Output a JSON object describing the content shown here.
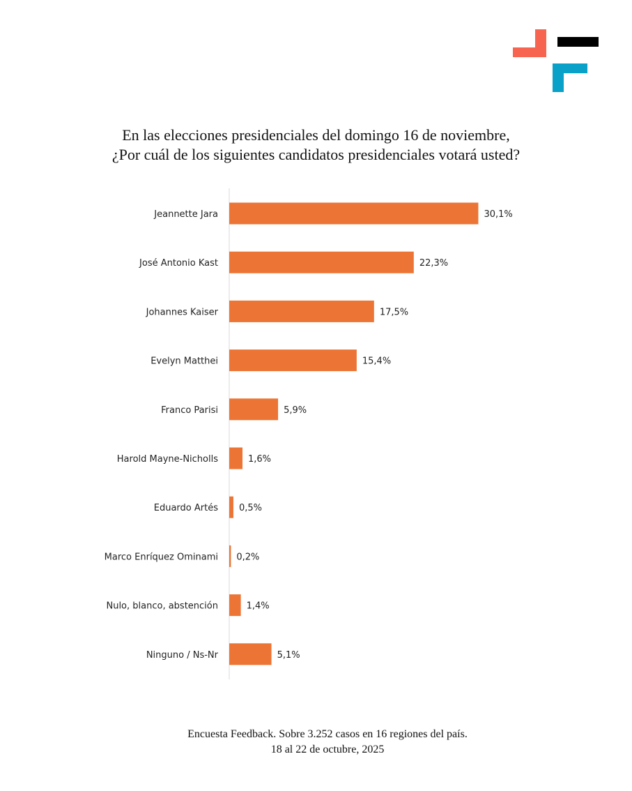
{
  "colors": {
    "bar": "#ec7434",
    "logo_red": "#f76550",
    "logo_black": "#000000",
    "logo_cyan": "#0aa1c8",
    "axis": "#d9d9d9"
  },
  "logo": {
    "name": "feedback-logo"
  },
  "chart_data": {
    "type": "bar",
    "orientation": "horizontal",
    "title": "En las elecciones presidenciales del domingo 16 de noviembre, ¿Por cuál de los siguientes candidatos presidenciales votará usted?",
    "title_lines": [
      "En las elecciones presidenciales del domingo 16 de noviembre,",
      "¿Por cuál de los siguientes candidatos presidenciales votará usted?"
    ],
    "categories": [
      "Jeannette Jara",
      "José Antonio Kast",
      "Johannes Kaiser",
      "Evelyn Matthei",
      "Franco Parisi",
      "Harold Mayne-Nicholls",
      "Eduardo Artés",
      "Marco Enríquez Ominami",
      "Nulo, blanco, abstención",
      "Ninguno / Ns-Nr"
    ],
    "values": [
      30.1,
      22.3,
      17.5,
      15.4,
      5.9,
      1.6,
      0.5,
      0.2,
      1.4,
      5.1
    ],
    "value_labels": [
      "30,1%",
      "22,3%",
      "17,5%",
      "15,4%",
      "5,9%",
      "1,6%",
      "0,5%",
      "0,2%",
      "1,4%",
      "5,1%"
    ],
    "xlim": [
      0,
      40
    ],
    "xlabel": "",
    "ylabel": "",
    "grid": false,
    "legend": "none"
  },
  "footer": {
    "line1": "Encuesta Feedback. Sobre 3.252 casos en 16 regiones del país.",
    "line2": "18 al 22 de octubre, 2025"
  }
}
